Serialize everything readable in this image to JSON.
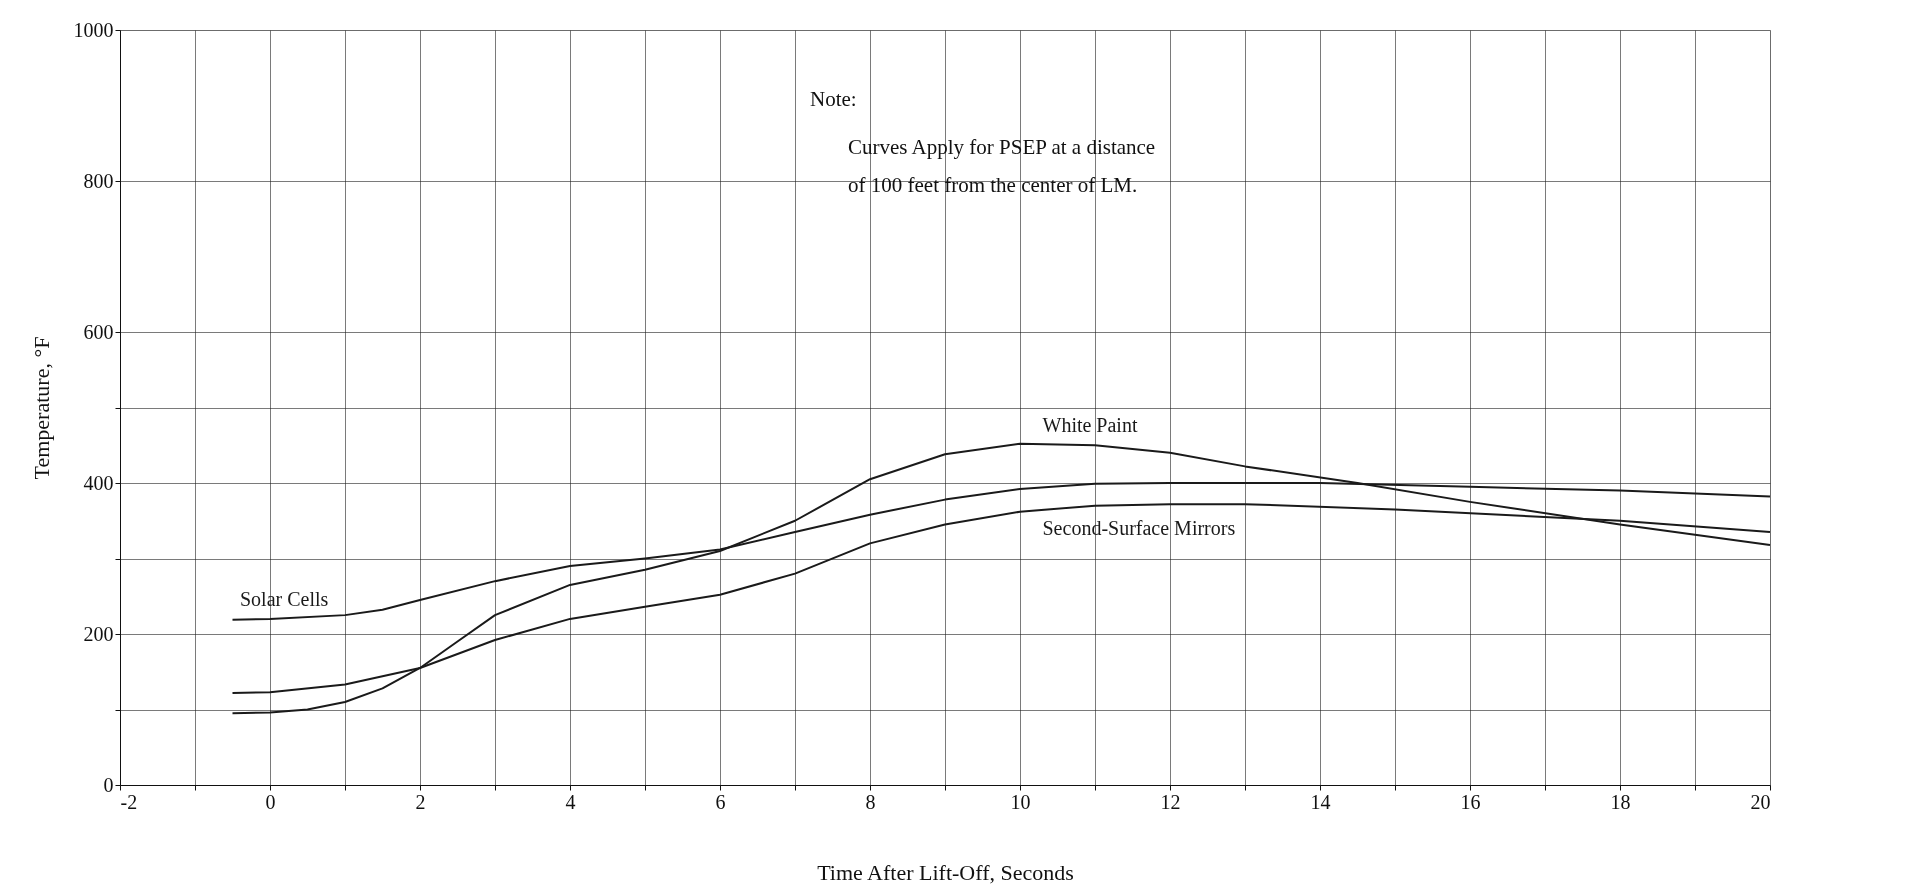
{
  "chart_data": {
    "type": "line",
    "xlabel": "Time After Lift-Off, Seconds",
    "ylabel": "Temperature, °F",
    "annotations": [
      "Note:",
      "Curves Apply for PSEP at a distance",
      "of 100 feet from the center of LM."
    ],
    "series": [
      {
        "name": "Solar Cells",
        "color": "#1a1a1a",
        "x": [
          -0.5,
          0,
          1,
          1.5,
          2,
          3,
          4,
          5,
          6,
          7,
          8,
          9,
          10,
          11,
          12,
          14,
          16,
          18,
          20
        ],
        "values": [
          219,
          220,
          225,
          232,
          245,
          270,
          290,
          300,
          312,
          335,
          358,
          378,
          392,
          399,
          400,
          400,
          395,
          390,
          382
        ]
      },
      {
        "name": "White Paint",
        "color": "#1a1a1a",
        "x": [
          -0.5,
          0,
          0.5,
          1,
          1.5,
          2,
          2.5,
          3,
          4,
          5,
          6,
          7,
          8,
          9,
          10,
          11,
          12,
          13,
          14.5,
          16,
          18,
          20
        ],
        "values": [
          95,
          96,
          100,
          110,
          128,
          155,
          190,
          225,
          265,
          285,
          310,
          350,
          405,
          438,
          452,
          450,
          440,
          422,
          400,
          375,
          345,
          318
        ]
      },
      {
        "name": "Second-Surface Mirrors",
        "color": "#1a1a1a",
        "x": [
          -0.5,
          0,
          1,
          2,
          3,
          4,
          5,
          6,
          7,
          8,
          9,
          10,
          11,
          12,
          13,
          15,
          18,
          20
        ],
        "values": [
          122,
          123,
          133,
          155,
          192,
          220,
          236,
          252,
          280,
          320,
          345,
          362,
          370,
          372,
          372,
          365,
          350,
          335
        ]
      }
    ],
    "xlim": [
      -2,
      20
    ],
    "xticks": [
      -2,
      {
        "value": -1,
        "label": null
      },
      0,
      {
        "value": 1,
        "label": null
      },
      2,
      {
        "value": 3,
        "label": null
      },
      4,
      {
        "value": 5,
        "label": null
      },
      6,
      {
        "value": 7,
        "label": null
      },
      8,
      {
        "value": 9,
        "label": null
      },
      10,
      {
        "value": 11,
        "label": null
      },
      12,
      {
        "value": 13,
        "label": null
      },
      14,
      {
        "value": 15,
        "label": null
      },
      16,
      {
        "value": 17,
        "label": null
      },
      18,
      {
        "value": 19,
        "label": null
      },
      20
    ],
    "ylim": [
      0,
      1000
    ],
    "yticks": [
      0,
      {
        "value": 100,
        "label": null
      },
      200,
      {
        "value": 300,
        "label": null
      },
      400,
      {
        "value": 500,
        "label": null
      },
      600,
      800,
      1000
    ],
    "grid": true,
    "marker": "none",
    "line_style": "solid"
  }
}
